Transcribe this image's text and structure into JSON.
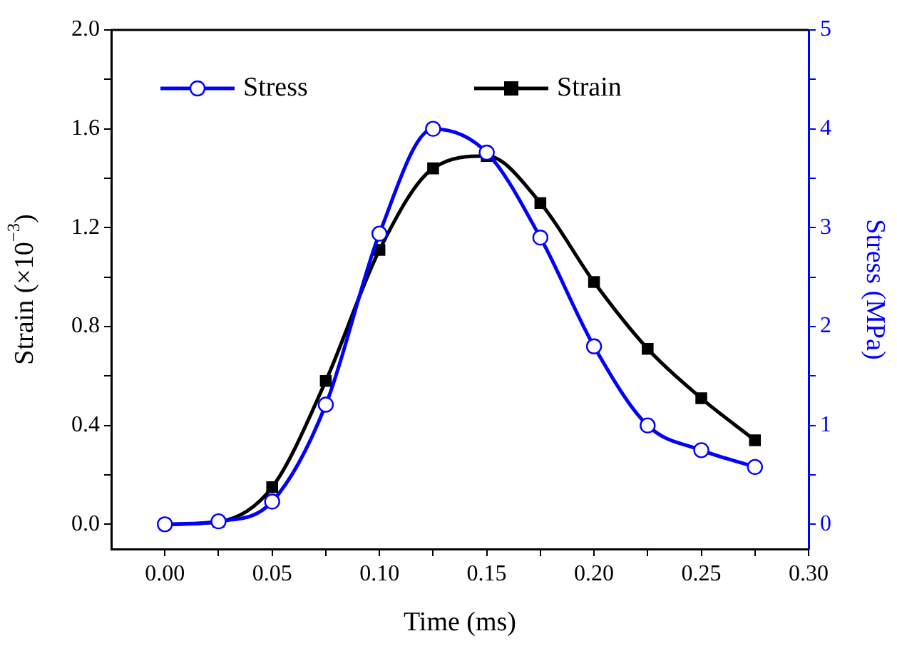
{
  "chart_data": {
    "type": "line",
    "xlabel": "Time (ms)",
    "ylabel": "Strain (×10$^{−3}$)",
    "y2label": "Stress (MPa)",
    "x": [
      0,
      0.025,
      0.05,
      0.075,
      0.1,
      0.125,
      0.15,
      0.175,
      0.2,
      0.225,
      0.25,
      0.275
    ],
    "series": [
      {
        "name": "Stress",
        "color": "#0000ff",
        "axis": "y2",
        "marker": "circle",
        "values": [
          0,
          0.03,
          0.23,
          1.21,
          2.94,
          4.0,
          3.76,
          2.9,
          1.8,
          1.0,
          0.75,
          0.58
        ]
      },
      {
        "name": "Strain",
        "color": "#000000",
        "axis": "y",
        "marker": "square",
        "values": [
          0,
          0.01,
          0.15,
          0.58,
          1.11,
          1.44,
          1.49,
          1.3,
          0.98,
          0.71,
          0.51,
          0.34
        ]
      }
    ],
    "xlim": [
      -0.025,
      0.3
    ],
    "xticks": [
      {
        "value": 0,
        "label": "0.00"
      },
      {
        "value": 0.025,
        "label": null
      },
      {
        "value": 0.05,
        "label": "0.05"
      },
      {
        "value": 0.075,
        "label": null
      },
      {
        "value": 0.1,
        "label": "0.10"
      },
      {
        "value": 0.125,
        "label": null
      },
      {
        "value": 0.15,
        "label": "0.15"
      },
      {
        "value": 0.175,
        "label": null
      },
      {
        "value": 0.2,
        "label": "0.20"
      },
      {
        "value": 0.225,
        "label": null
      },
      {
        "value": 0.25,
        "label": "0.25"
      },
      {
        "value": 0.275,
        "label": null
      },
      {
        "value": 0.3,
        "label": "0.30"
      }
    ],
    "ylim": [
      -0.1,
      2.0
    ],
    "yticks": [
      {
        "value": 0,
        "label": "0.0"
      },
      {
        "value": 0.2,
        "label": null
      },
      {
        "value": 0.4,
        "label": "0.4"
      },
      {
        "value": 0.6,
        "label": null
      },
      {
        "value": 0.8,
        "label": "0.8"
      },
      {
        "value": 1.0,
        "label": null
      },
      {
        "value": 1.2,
        "label": "1.2"
      },
      {
        "value": 1.4,
        "label": null
      },
      {
        "value": 1.6,
        "label": "1.6"
      },
      {
        "value": 1.8,
        "label": null
      },
      {
        "value": 2.0,
        "label": "2.0"
      }
    ],
    "y2lim": [
      -0.25,
      5
    ],
    "y2ticks": [
      0,
      {
        "value": 0.5,
        "label": null
      },
      1,
      {
        "value": 1.5,
        "label": null
      },
      2,
      {
        "value": 2.5,
        "label": null
      },
      3,
      {
        "value": 3.5,
        "label": null
      },
      4,
      {
        "value": 4.5,
        "label": null
      },
      5
    ],
    "grid": false,
    "legend": "top",
    "line_style": "solid"
  }
}
